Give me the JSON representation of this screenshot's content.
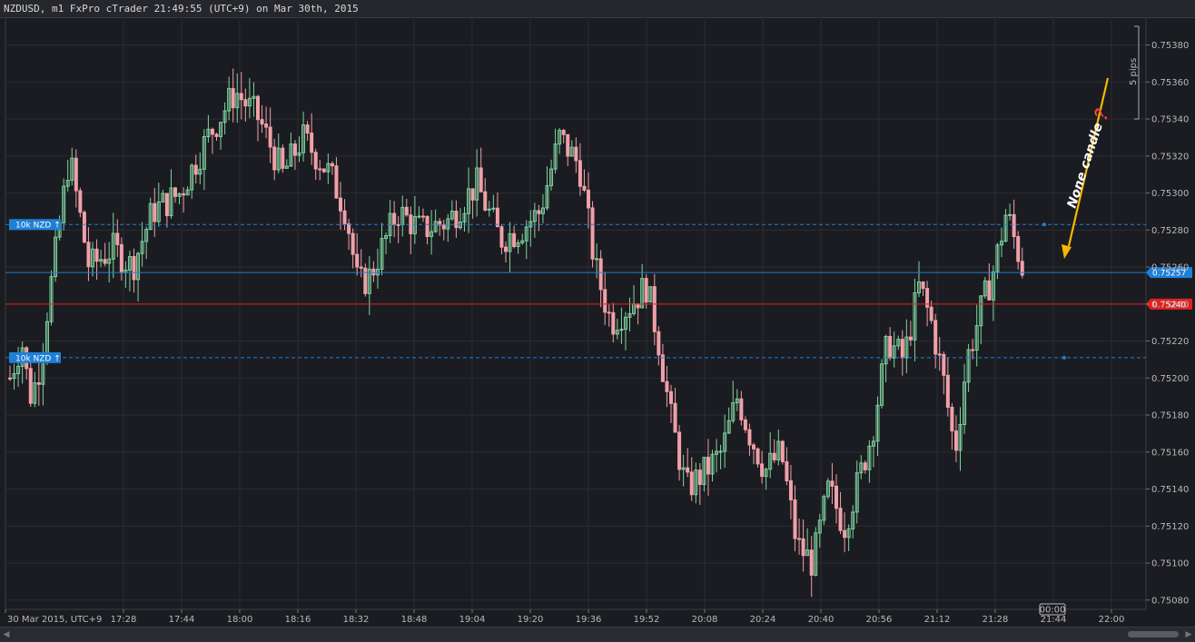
{
  "window": {
    "title": "NZDUSD, m1 FxPro cTrader 21:49:55 (UTC+9) on Mar 30th, 2015"
  },
  "colors": {
    "background": "#1b1c21",
    "grid": "#2a2c33",
    "bull": "#7fd3a0",
    "bear": "#f0a0a8",
    "ask_line": "#1f7fd6",
    "bid_line": "#e02020",
    "order_line": "#1f7fd6",
    "annotation": "#f5b800"
  },
  "chart_data": {
    "type": "candlestick",
    "symbol": "NZDUSD",
    "timeframe": "m1",
    "ylim": [
      0.75075,
      0.75395
    ],
    "y_ticks": [
      "0.75380",
      "0.75360",
      "0.75340",
      "0.75320",
      "0.75300",
      "0.75280",
      "0.75260",
      "0.75240",
      "0.75220",
      "0.75200",
      "0.75180",
      "0.75160",
      "0.75140",
      "0.75120",
      "0.75100",
      "0.75080"
    ],
    "x_ticks": [
      "30 Mar 2015, UTC+9",
      "17:28",
      "17:44",
      "18:00",
      "18:16",
      "18:32",
      "18:48",
      "19:04",
      "19:20",
      "19:36",
      "19:52",
      "20:08",
      "20:24",
      "20:40",
      "20:56",
      "21:12",
      "21:28",
      "21:44",
      "22:00"
    ],
    "grid": true,
    "price_path": [
      {
        "t": 0,
        "p": 0.752
      },
      {
        "t": 6,
        "p": 0.7522
      },
      {
        "t": 10,
        "p": 0.7519
      },
      {
        "t": 14,
        "p": 0.752
      },
      {
        "t": 22,
        "p": 0.7526
      },
      {
        "t": 30,
        "p": 0.7532
      },
      {
        "t": 40,
        "p": 0.7526
      },
      {
        "t": 52,
        "p": 0.7527
      },
      {
        "t": 62,
        "p": 0.7526
      },
      {
        "t": 72,
        "p": 0.7529
      },
      {
        "t": 86,
        "p": 0.753
      },
      {
        "t": 100,
        "p": 0.7533
      },
      {
        "t": 114,
        "p": 0.75355
      },
      {
        "t": 126,
        "p": 0.7534
      },
      {
        "t": 138,
        "p": 0.7531
      },
      {
        "t": 148,
        "p": 0.7533
      },
      {
        "t": 162,
        "p": 0.7531
      },
      {
        "t": 170,
        "p": 0.7529
      },
      {
        "t": 176,
        "p": 0.7525
      },
      {
        "t": 182,
        "p": 0.75255
      },
      {
        "t": 196,
        "p": 0.7529
      },
      {
        "t": 208,
        "p": 0.7528
      },
      {
        "t": 222,
        "p": 0.75285
      },
      {
        "t": 236,
        "p": 0.75305
      },
      {
        "t": 248,
        "p": 0.75275
      },
      {
        "t": 258,
        "p": 0.7528
      },
      {
        "t": 268,
        "p": 0.7529
      },
      {
        "t": 278,
        "p": 0.7533
      },
      {
        "t": 288,
        "p": 0.75315
      },
      {
        "t": 296,
        "p": 0.7526
      },
      {
        "t": 304,
        "p": 0.7523
      },
      {
        "t": 314,
        "p": 0.7524
      },
      {
        "t": 322,
        "p": 0.7525
      },
      {
        "t": 328,
        "p": 0.7522
      },
      {
        "t": 334,
        "p": 0.7518
      },
      {
        "t": 342,
        "p": 0.7514
      },
      {
        "t": 352,
        "p": 0.7515
      },
      {
        "t": 360,
        "p": 0.7516
      },
      {
        "t": 368,
        "p": 0.7519
      },
      {
        "t": 374,
        "p": 0.7517
      },
      {
        "t": 382,
        "p": 0.7515
      },
      {
        "t": 390,
        "p": 0.7516
      },
      {
        "t": 398,
        "p": 0.7511
      },
      {
        "t": 406,
        "p": 0.751
      },
      {
        "t": 414,
        "p": 0.7514
      },
      {
        "t": 422,
        "p": 0.7512
      },
      {
        "t": 428,
        "p": 0.7514
      },
      {
        "t": 436,
        "p": 0.7517
      },
      {
        "t": 444,
        "p": 0.7522
      },
      {
        "t": 452,
        "p": 0.7521
      },
      {
        "t": 460,
        "p": 0.7525
      },
      {
        "t": 466,
        "p": 0.7523
      },
      {
        "t": 472,
        "p": 0.752
      },
      {
        "t": 478,
        "p": 0.7516
      },
      {
        "t": 484,
        "p": 0.7521
      },
      {
        "t": 492,
        "p": 0.7524
      },
      {
        "t": 498,
        "p": 0.7526
      },
      {
        "t": 504,
        "p": 0.7529
      },
      {
        "t": 512,
        "p": 0.7526
      }
    ],
    "lines": [
      {
        "name": "ask",
        "price": 0.75257,
        "label": "0.75257"
      },
      {
        "name": "bid",
        "price": 0.7524,
        "label": "0.75240"
      }
    ],
    "orders": [
      {
        "label": "10k NZD ↑",
        "price": 0.75283
      },
      {
        "label": "10k NZD ↑",
        "price": 0.75211
      }
    ],
    "annotation": {
      "text": "None candle❓"
    },
    "scale_note": "5 pips",
    "countdown": "00:00"
  }
}
